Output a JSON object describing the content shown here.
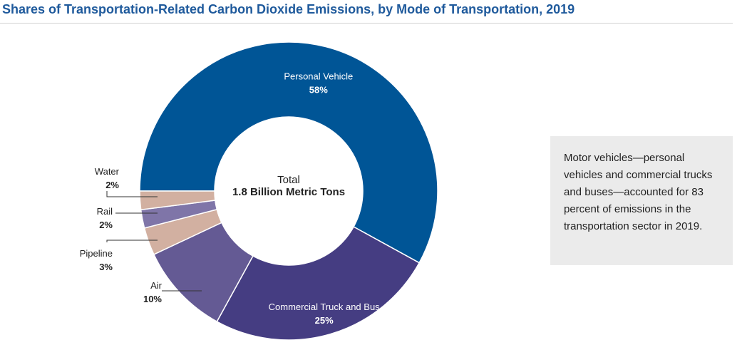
{
  "chart_data": {
    "type": "donut",
    "title": "Shares of Transportation-Related Carbon Dioxide Emissions, by Mode of Transportation, 2019",
    "center_label": {
      "line1": "Total",
      "line2": "1.8 Billion Metric Tons"
    },
    "slices": [
      {
        "name": "Personal Vehicle",
        "value": 58,
        "label": "58%",
        "color": "#005596"
      },
      {
        "name": "Commercial Truck and Bus",
        "value": 25,
        "label": "25%",
        "color": "#453d82"
      },
      {
        "name": "Air",
        "value": 10,
        "label": "10%",
        "color": "#645a94"
      },
      {
        "name": "Pipeline",
        "value": 3,
        "label": "3%",
        "color": "#d2b0a1"
      },
      {
        "name": "Rail",
        "value": 2,
        "label": "2%",
        "color": "#7f75a8"
      },
      {
        "name": "Water",
        "value": 2,
        "label": "2%",
        "color": "#d2b0a1"
      }
    ]
  },
  "note": {
    "text": "Motor vehicles—personal vehicles and commercial trucks and buses—accounted for 83 percent of emissions in the transportation sector in 2019."
  }
}
